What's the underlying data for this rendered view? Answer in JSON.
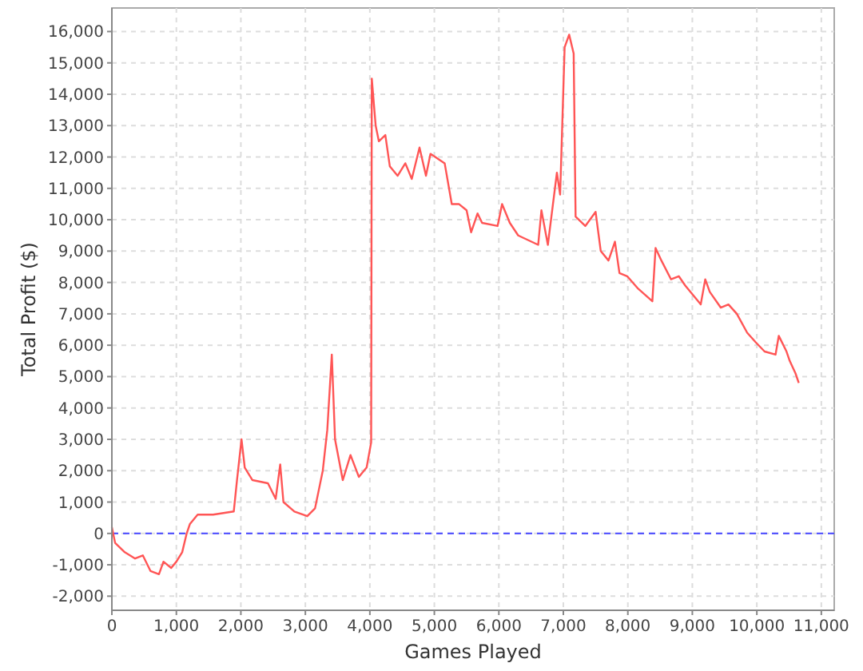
{
  "chart_data": {
    "type": "line",
    "xlabel": "Games Played",
    "ylabel": "Total Profit ($)",
    "xlim": [
      0,
      11200
    ],
    "ylim": [
      -2450,
      16750
    ],
    "xticks": [
      {
        "value": 0,
        "label": "0"
      },
      {
        "value": 1000,
        "label": "1,000"
      },
      {
        "value": 2000,
        "label": "2,000"
      },
      {
        "value": 3000,
        "label": "3,000"
      },
      {
        "value": 4000,
        "label": "4,000"
      },
      {
        "value": 5000,
        "label": "5,000"
      },
      {
        "value": 6000,
        "label": "6,000"
      },
      {
        "value": 7000,
        "label": "7,000"
      },
      {
        "value": 8000,
        "label": "8,000"
      },
      {
        "value": 9000,
        "label": "9,000"
      },
      {
        "value": 10000,
        "label": "10,000"
      },
      {
        "value": 11000,
        "label": "11,000"
      }
    ],
    "yticks": [
      {
        "value": -2000,
        "label": "-2,000"
      },
      {
        "value": -1000,
        "label": "-1,000"
      },
      {
        "value": 0,
        "label": "0"
      },
      {
        "value": 1000,
        "label": "1,000"
      },
      {
        "value": 2000,
        "label": "2,000"
      },
      {
        "value": 3000,
        "label": "3,000"
      },
      {
        "value": 4000,
        "label": "4,000"
      },
      {
        "value": 5000,
        "label": "5,000"
      },
      {
        "value": 6000,
        "label": "6,000"
      },
      {
        "value": 7000,
        "label": "7,000"
      },
      {
        "value": 8000,
        "label": "8,000"
      },
      {
        "value": 9000,
        "label": "9,000"
      },
      {
        "value": 10000,
        "label": "10,000"
      },
      {
        "value": 11000,
        "label": "11,000"
      },
      {
        "value": 12000,
        "label": "12,000"
      },
      {
        "value": 13000,
        "label": "13,000"
      },
      {
        "value": 14000,
        "label": "14,000"
      },
      {
        "value": 15000,
        "label": "15,000"
      },
      {
        "value": 16000,
        "label": "16,000"
      }
    ],
    "grid": true,
    "marker": "none",
    "line_style": "solid",
    "ref_lines": [
      {
        "axis": "y",
        "value": 0,
        "label": null,
        "color": "#4444ff",
        "line_style": "dashed"
      }
    ],
    "series": [
      {
        "color": "#ff5555",
        "x": [
          0,
          50,
          200,
          360,
          480,
          600,
          730,
          800,
          920,
          1000,
          1090,
          1160,
          1210,
          1330,
          1570,
          1890,
          1940,
          2010,
          2060,
          2180,
          2420,
          2540,
          2610,
          2660,
          2830,
          3030,
          3150,
          3270,
          3340,
          3410,
          3460,
          3580,
          3700,
          3830,
          3950,
          4020,
          4030,
          4090,
          4140,
          4240,
          4310,
          4430,
          4550,
          4650,
          4770,
          4870,
          4940,
          5160,
          5270,
          5380,
          5500,
          5570,
          5670,
          5740,
          5980,
          6050,
          6170,
          6300,
          6610,
          6660,
          6760,
          6900,
          6950,
          7020,
          7090,
          7160,
          7190,
          7340,
          7500,
          7580,
          7700,
          7800,
          7870,
          7990,
          8160,
          8380,
          8430,
          8520,
          8670,
          8790,
          8890,
          9010,
          9130,
          9200,
          9270,
          9440,
          9560,
          9690,
          9850,
          9980,
          10120,
          10290,
          10340,
          10460,
          10510,
          10600,
          10650
        ],
        "values": [
          200,
          -300,
          -600,
          -800,
          -700,
          -1200,
          -1300,
          -900,
          -1100,
          -900,
          -600,
          0,
          300,
          600,
          600,
          700,
          1700,
          3000,
          2100,
          1700,
          1600,
          1100,
          2200,
          1000,
          700,
          550,
          800,
          2000,
          3300,
          5700,
          3000,
          1700,
          2500,
          1800,
          2100,
          2900,
          14500,
          13000,
          12500,
          12700,
          11700,
          11400,
          11800,
          11300,
          12300,
          11400,
          12100,
          11800,
          10500,
          10500,
          10300,
          9600,
          10200,
          9900,
          9800,
          10500,
          9900,
          9500,
          9200,
          10300,
          9200,
          11500,
          10800,
          15500,
          15900,
          15300,
          10100,
          9800,
          10250,
          9000,
          8700,
          9300,
          8300,
          8200,
          7800,
          7400,
          9100,
          8700,
          8100,
          8200,
          7900,
          7600,
          7300,
          8100,
          7700,
          7200,
          7300,
          7000,
          6400,
          6100,
          5800,
          5700,
          6300,
          5800,
          5500,
          5100,
          4800
        ]
      }
    ]
  }
}
